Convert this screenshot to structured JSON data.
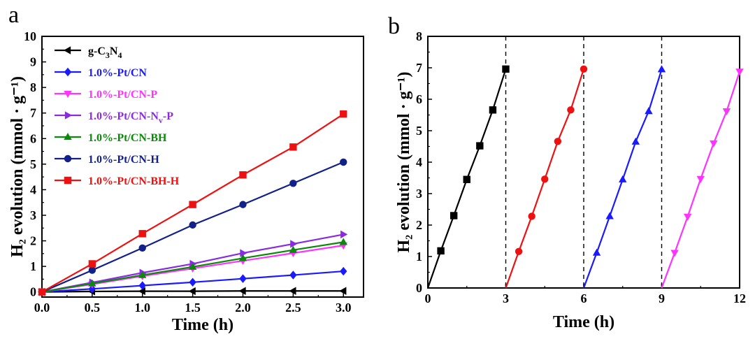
{
  "panel_labels": {
    "a": "a",
    "b": "b"
  },
  "chart_data": [
    {
      "type": "line",
      "panel": "a",
      "xlabel": "Time (h)",
      "ylabel": "H₂ evolution (mmol · g⁻¹)",
      "xlim": [
        0,
        3.2
      ],
      "ylim": [
        -0.2,
        10
      ],
      "xticks": [
        "0.0",
        "0.5",
        "1.0",
        "1.5",
        "2.0",
        "2.5",
        "3.0"
      ],
      "yticks": [
        "0",
        "1",
        "2",
        "3",
        "4",
        "5",
        "6",
        "7",
        "8",
        "9",
        "10"
      ],
      "legend_position": "top-left",
      "x": [
        0,
        0.5,
        1.0,
        1.5,
        2.0,
        2.5,
        3.0
      ],
      "series": [
        {
          "name": "g-C3N4",
          "name_parts": {
            "base": "g-C",
            "sub1": "3",
            "mid": "N",
            "sub2": "4"
          },
          "color": "#000000",
          "marker": "triangle-left",
          "values": [
            0,
            0.02,
            0.03,
            0.03,
            0.04,
            0.04,
            0.04
          ]
        },
        {
          "name": "1.0%-Pt/CN",
          "color": "#1a1aff",
          "marker": "diamond",
          "values": [
            0,
            0.12,
            0.25,
            0.38,
            0.52,
            0.66,
            0.81
          ]
        },
        {
          "name": "1.0%-Pt/CN-P",
          "color": "#ff33ff",
          "marker": "triangle-down",
          "values": [
            0,
            0.3,
            0.62,
            0.92,
            1.22,
            1.52,
            1.82
          ]
        },
        {
          "name": "1.0%-Pt/CN-Nv-P",
          "name_parts": {
            "base": "1.0%-Pt/CN-N",
            "sub": "v",
            "tail": "-P"
          },
          "color": "#8a2be2",
          "marker": "triangle-right",
          "values": [
            0,
            0.37,
            0.75,
            1.1,
            1.52,
            1.88,
            2.25
          ]
        },
        {
          "name": "1.0%-Pt/CN-BH",
          "color": "#0a8a0a",
          "marker": "triangle-up",
          "values": [
            0,
            0.33,
            0.66,
            0.98,
            1.32,
            1.64,
            1.95
          ]
        },
        {
          "name": "1.0%-Pt/CN-H",
          "color": "#12208a",
          "marker": "circle",
          "values": [
            0,
            0.85,
            1.72,
            2.62,
            3.42,
            4.25,
            5.08
          ]
        },
        {
          "name": "1.0%-Pt/CN-BH-H",
          "color": "#ee1111",
          "marker": "square",
          "values": [
            0,
            1.1,
            2.28,
            3.42,
            4.58,
            5.67,
            6.96
          ]
        }
      ]
    },
    {
      "type": "line",
      "panel": "b",
      "xlabel": "Time (h)",
      "ylabel": "H₂ evolution (mmol · g⁻¹)",
      "xlim": [
        0,
        12
      ],
      "ylim": [
        0,
        8
      ],
      "xticks": [
        "0",
        "3",
        "6",
        "9",
        "12"
      ],
      "yticks": [
        "0",
        "1",
        "2",
        "3",
        "4",
        "5",
        "6",
        "7",
        "8"
      ],
      "dashed_lines_at_x": [
        3,
        6,
        9
      ],
      "series": [
        {
          "color": "#000000",
          "marker": "square",
          "points": [
            [
              0,
              0
            ],
            [
              0.5,
              1.18
            ],
            [
              1.0,
              2.3
            ],
            [
              1.5,
              3.45
            ],
            [
              2.0,
              4.52
            ],
            [
              2.5,
              5.66
            ],
            [
              3.0,
              6.96
            ]
          ]
        },
        {
          "color": "#ee1111",
          "marker": "circle",
          "points": [
            [
              3.0,
              0
            ],
            [
              3.5,
              1.16
            ],
            [
              4.0,
              2.28
            ],
            [
              4.5,
              3.46
            ],
            [
              5.0,
              4.66
            ],
            [
              5.5,
              5.66
            ],
            [
              6.0,
              6.96
            ]
          ]
        },
        {
          "color": "#1a1aff",
          "marker": "triangle-up",
          "points": [
            [
              6.0,
              0
            ],
            [
              6.5,
              1.12
            ],
            [
              7.0,
              2.28
            ],
            [
              7.5,
              3.45
            ],
            [
              8.0,
              4.65
            ],
            [
              8.5,
              5.62
            ],
            [
              9.0,
              6.95
            ]
          ]
        },
        {
          "color": "#ff33ff",
          "marker": "triangle-down",
          "points": [
            [
              9.0,
              0
            ],
            [
              9.5,
              1.12
            ],
            [
              10.0,
              2.27
            ],
            [
              10.5,
              3.47
            ],
            [
              11.0,
              4.6
            ],
            [
              11.5,
              5.62
            ],
            [
              12.0,
              6.88
            ]
          ]
        }
      ]
    }
  ]
}
